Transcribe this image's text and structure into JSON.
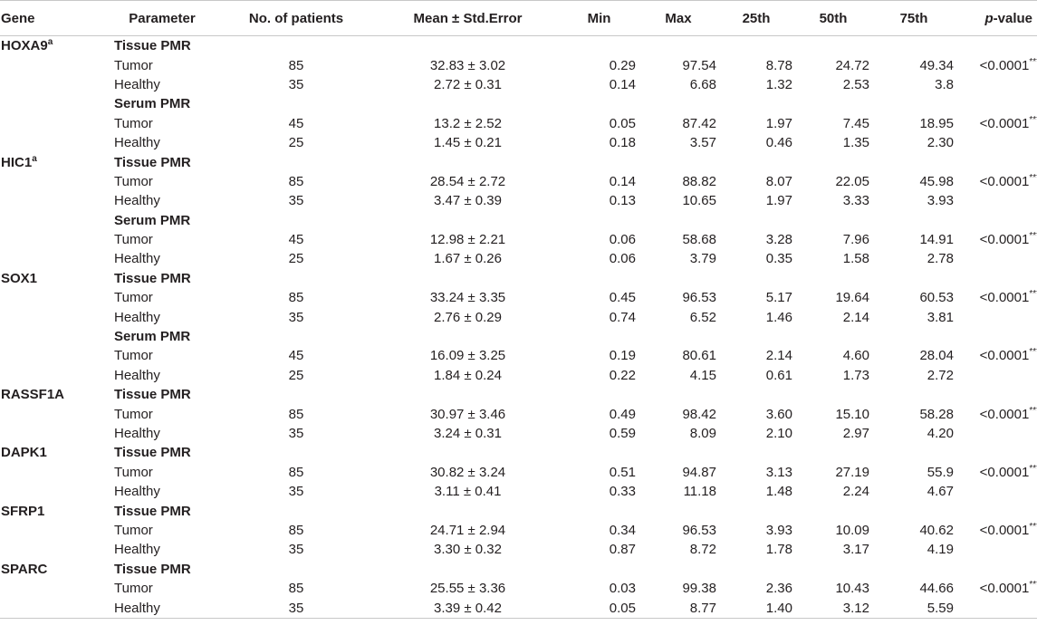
{
  "headers": {
    "gene": "Gene",
    "parameter": "Parameter",
    "patients": "No. of patients",
    "mean": "Mean ± Std.Error",
    "min": "Min",
    "max": "Max",
    "p25": "25th",
    "p50": "50th",
    "p75": "75th",
    "pvalue_italic": "p",
    "pvalue_rest": "-value"
  },
  "rows": [
    {
      "gene": "HOXA9",
      "sup": "a",
      "section": "Tissue PMR"
    },
    {
      "param": "Tumor",
      "n": "85",
      "mean": "32.83 ± 3.02",
      "min": "0.29",
      "max": "97.54",
      "p25": "8.78",
      "p50": "24.72",
      "p75": "49.34",
      "p": "<0.0001",
      "stars": "***"
    },
    {
      "param": "Healthy",
      "n": "35",
      "mean": "2.72 ± 0.31",
      "min": "0.14",
      "max": "6.68",
      "p25": "1.32",
      "p50": "2.53",
      "p75": "3.8"
    },
    {
      "section": "Serum PMR"
    },
    {
      "param": "Tumor",
      "n": "45",
      "mean": "13.2 ± 2.52",
      "min": "0.05",
      "max": "87.42",
      "p25": "1.97",
      "p50": "7.45",
      "p75": "18.95",
      "p": "<0.0001",
      "stars": "***"
    },
    {
      "param": "Healthy",
      "n": "25",
      "mean": "1.45 ± 0.21",
      "min": "0.18",
      "max": "3.57",
      "p25": "0.46",
      "p50": "1.35",
      "p75": "2.30"
    },
    {
      "gene": "HIC1",
      "sup": "a",
      "section": "Tissue PMR"
    },
    {
      "param": "Tumor",
      "n": "85",
      "mean": "28.54 ± 2.72",
      "min": "0.14",
      "max": "88.82",
      "p25": "8.07",
      "p50": "22.05",
      "p75": "45.98",
      "p": "<0.0001",
      "stars": "***"
    },
    {
      "param": "Healthy",
      "n": "35",
      "mean": "3.47 ± 0.39",
      "min": "0.13",
      "max": "10.65",
      "p25": "1.97",
      "p50": "3.33",
      "p75": "3.93"
    },
    {
      "section": "Serum PMR"
    },
    {
      "param": "Tumor",
      "n": "45",
      "mean": "12.98 ± 2.21",
      "min": "0.06",
      "max": "58.68",
      "p25": "3.28",
      "p50": "7.96",
      "p75": "14.91",
      "p": "<0.0001",
      "stars": "***"
    },
    {
      "param": "Healthy",
      "n": "25",
      "mean": "1.67 ± 0.26",
      "min": "0.06",
      "max": "3.79",
      "p25": "0.35",
      "p50": "1.58",
      "p75": "2.78"
    },
    {
      "gene": "SOX1",
      "section": "Tissue PMR"
    },
    {
      "param": "Tumor",
      "n": "85",
      "mean": "33.24 ± 3.35",
      "min": "0.45",
      "max": "96.53",
      "p25": "5.17",
      "p50": "19.64",
      "p75": "60.53",
      "p": "<0.0001",
      "stars": "***"
    },
    {
      "param": "Healthy",
      "n": "35",
      "mean": "2.76 ± 0.29",
      "min": "0.74",
      "max": "6.52",
      "p25": "1.46",
      "p50": "2.14",
      "p75": "3.81"
    },
    {
      "section": "Serum PMR"
    },
    {
      "param": "Tumor",
      "n": "45",
      "mean": "16.09 ± 3.25",
      "min": "0.19",
      "max": "80.61",
      "p25": "2.14",
      "p50": "4.60",
      "p75": "28.04",
      "p": "<0.0001",
      "stars": "***"
    },
    {
      "param": "Healthy",
      "n": "25",
      "mean": "1.84 ± 0.24",
      "min": "0.22",
      "max": "4.15",
      "p25": "0.61",
      "p50": "1.73",
      "p75": "2.72"
    },
    {
      "gene": "RASSF1A",
      "section": "Tissue PMR"
    },
    {
      "param": "Tumor",
      "n": "85",
      "mean": "30.97 ± 3.46",
      "min": "0.49",
      "max": "98.42",
      "p25": "3.60",
      "p50": "15.10",
      "p75": "58.28",
      "p": "<0.0001",
      "stars": "***"
    },
    {
      "param": "Healthy",
      "n": "35",
      "mean": "3.24 ± 0.31",
      "min": "0.59",
      "max": "8.09",
      "p25": "2.10",
      "p50": "2.97",
      "p75": "4.20"
    },
    {
      "gene": "DAPK1",
      "section": "Tissue PMR"
    },
    {
      "param": "Tumor",
      "n": "85",
      "mean": "30.82 ± 3.24",
      "min": "0.51",
      "max": "94.87",
      "p25": "3.13",
      "p50": "27.19",
      "p75": "55.9",
      "p": "<0.0001",
      "stars": "***"
    },
    {
      "param": "Healthy",
      "n": "35",
      "mean": "3.11 ± 0.41",
      "min": "0.33",
      "max": "11.18",
      "p25": "1.48",
      "p50": "2.24",
      "p75": "4.67"
    },
    {
      "gene": "SFRP1",
      "section": "Tissue PMR"
    },
    {
      "param": "Tumor",
      "n": "85",
      "mean": "24.71 ± 2.94",
      "min": "0.34",
      "max": "96.53",
      "p25": "3.93",
      "p50": "10.09",
      "p75": "40.62",
      "p": "<0.0001",
      "stars": "***"
    },
    {
      "param": "Healthy",
      "n": "35",
      "mean": "3.30 ± 0.32",
      "min": "0.87",
      "max": "8.72",
      "p25": "1.78",
      "p50": "3.17",
      "p75": "4.19"
    },
    {
      "gene": "SPARC",
      "section": "Tissue PMR"
    },
    {
      "param": "Tumor",
      "n": "85",
      "mean": "25.55 ± 3.36",
      "min": "0.03",
      "max": "99.38",
      "p25": "2.36",
      "p50": "10.43",
      "p75": "44.66",
      "p": "<0.0001",
      "stars": "***"
    },
    {
      "param": "Healthy",
      "n": "35",
      "mean": "3.39 ± 0.42",
      "min": "0.05",
      "max": "8.77",
      "p25": "1.40",
      "p50": "3.12",
      "p75": "5.59"
    }
  ]
}
